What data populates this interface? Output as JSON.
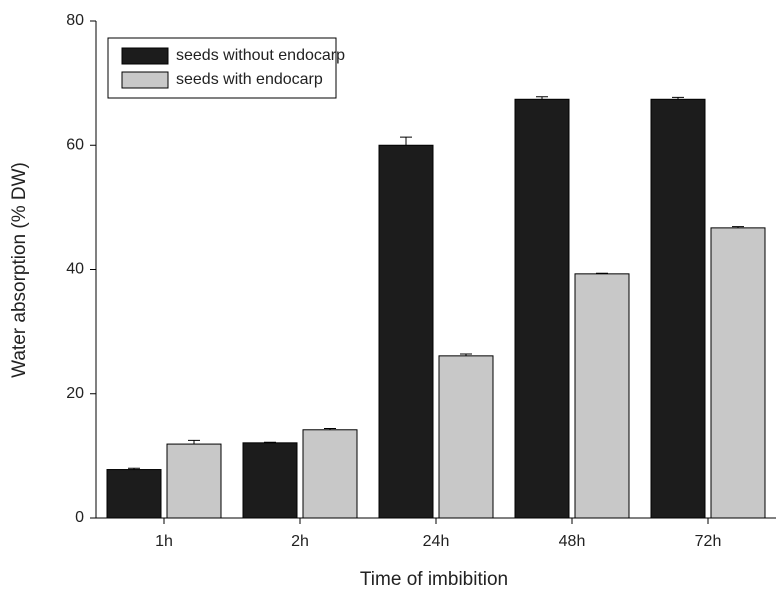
{
  "chart_data": {
    "type": "bar",
    "x_label": "Time of imbibition",
    "y_label": "Water absorption (% DW)",
    "categories": [
      "1h",
      "2h",
      "24h",
      "48h",
      "72h"
    ],
    "series": [
      {
        "name": "seeds without endocarp",
        "color": "#1c1c1c",
        "values": [
          7.8,
          12.1,
          60.0,
          67.4,
          67.4
        ],
        "errors": [
          0.2,
          0.1,
          1.3,
          0.4,
          0.3
        ]
      },
      {
        "name": "seeds with endocarp",
        "color": "#c8c8c8",
        "values": [
          11.9,
          14.2,
          26.1,
          39.3,
          46.7
        ],
        "errors": [
          0.6,
          0.2,
          0.3,
          0.1,
          0.2
        ]
      }
    ],
    "ylim": [
      0,
      80
    ],
    "yticks": [
      0,
      20,
      40,
      60,
      80
    ],
    "legend": "upper left"
  }
}
